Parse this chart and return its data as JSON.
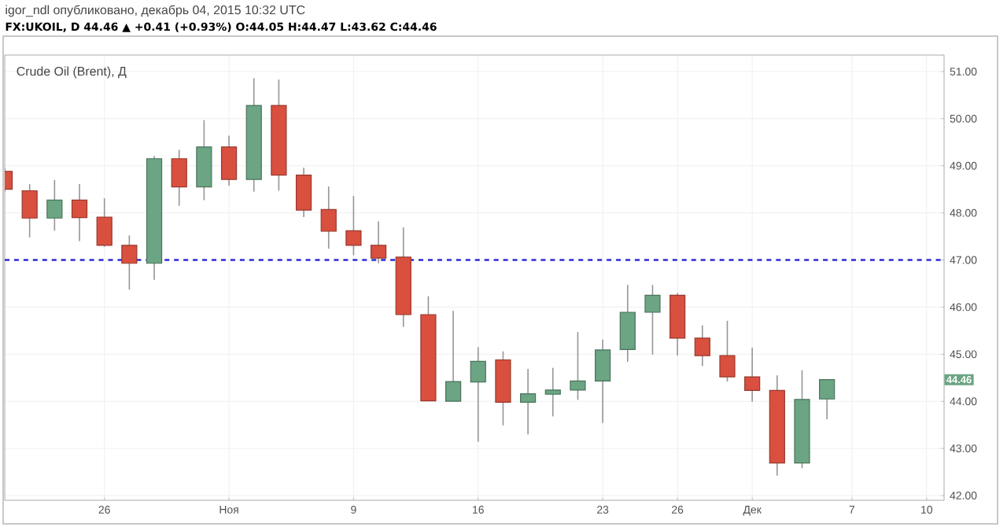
{
  "chart_data": {
    "type": "candlestick",
    "title": "Crude Oil (Brent), Д",
    "subtitle": "FX:UKOIL, D 44.46 ▲ +0.41 (+0.93%) O:44.05 H:44.47 L:43.62 C:44.46",
    "annotations": [
      "igor_ndl опубликовано, декабрь 04, 2015 10:32 UTC",
      {
        "text": "44.46",
        "y": 44.46
      }
    ],
    "categories": [
      null,
      null,
      null,
      null,
      "26",
      null,
      null,
      null,
      null,
      "Ноя",
      null,
      null,
      null,
      null,
      "9",
      null,
      null,
      null,
      null,
      "16",
      null,
      null,
      null,
      null,
      "23",
      null,
      null,
      "26",
      null,
      null,
      "Дек",
      null,
      null,
      null,
      "7",
      null,
      null,
      "10"
    ],
    "ohlc": [
      [
        48.88,
        48.95,
        48.45,
        48.5
      ],
      [
        48.47,
        48.61,
        47.48,
        47.89
      ],
      [
        47.89,
        48.7,
        47.62,
        48.27
      ],
      [
        48.27,
        48.61,
        47.4,
        47.9
      ],
      [
        47.91,
        48.31,
        47.28,
        47.31
      ],
      [
        47.31,
        47.52,
        46.37,
        46.93
      ],
      [
        46.93,
        49.21,
        46.58,
        49.15
      ],
      [
        49.15,
        49.34,
        48.15,
        48.55
      ],
      [
        48.55,
        49.97,
        48.27,
        49.4
      ],
      [
        49.4,
        49.64,
        48.58,
        48.71
      ],
      [
        48.71,
        50.86,
        48.45,
        50.28
      ],
      [
        50.28,
        50.83,
        48.47,
        48.8
      ],
      [
        48.8,
        48.96,
        47.91,
        48.06
      ],
      [
        48.07,
        48.56,
        47.24,
        47.61
      ],
      [
        47.62,
        48.36,
        47.1,
        47.31
      ],
      [
        47.31,
        47.82,
        46.93,
        47.04
      ],
      [
        47.06,
        47.69,
        45.58,
        45.84
      ],
      [
        45.84,
        46.23,
        44.0,
        44.01
      ],
      [
        44.0,
        45.92,
        44.0,
        44.42
      ],
      [
        44.41,
        45.15,
        43.14,
        44.85
      ],
      [
        44.88,
        45.06,
        43.49,
        43.98
      ],
      [
        43.98,
        44.69,
        43.3,
        44.16
      ],
      [
        44.15,
        44.71,
        43.68,
        44.24
      ],
      [
        44.24,
        45.47,
        44.03,
        44.43
      ],
      [
        44.43,
        45.31,
        43.54,
        45.09
      ],
      [
        45.1,
        46.47,
        44.84,
        45.89
      ],
      [
        45.89,
        46.47,
        44.99,
        46.25
      ],
      [
        46.25,
        46.3,
        44.97,
        45.34
      ],
      [
        45.34,
        45.61,
        44.75,
        44.97
      ],
      [
        44.97,
        45.71,
        44.42,
        44.52
      ],
      [
        44.52,
        45.14,
        43.99,
        44.23
      ],
      [
        44.23,
        44.55,
        42.42,
        42.69
      ],
      [
        42.69,
        44.66,
        42.58,
        44.04
      ],
      [
        44.05,
        44.47,
        43.62,
        44.46
      ],
      null,
      null,
      null,
      null
    ],
    "colors": [
      "#d9503f",
      "#d9503f",
      "#6ba583",
      "#d9503f",
      "#d9503f",
      "#d9503f",
      "#6ba583",
      "#d9503f",
      "#6ba583",
      "#d9503f",
      "#6ba583",
      "#d9503f",
      "#d9503f",
      "#d9503f",
      "#d9503f",
      "#d9503f",
      "#d9503f",
      "#d9503f",
      "#6ba583",
      "#6ba583",
      "#d9503f",
      "#6ba583",
      "#6ba583",
      "#6ba583",
      "#6ba583",
      "#6ba583",
      "#6ba583",
      "#d9503f",
      "#d9503f",
      "#d9503f",
      "#d9503f",
      "#d9503f",
      "#6ba583",
      "#6ba583",
      null,
      null,
      null,
      null
    ],
    "ylim": [
      41.9,
      51.35
    ],
    "yticks": [
      {
        "value": 42,
        "label": "42.00"
      },
      {
        "value": 43,
        "label": "43.00"
      },
      {
        "value": 44,
        "label": "44.00"
      },
      {
        "value": 45,
        "label": "45.00"
      },
      {
        "value": 46,
        "label": "46.00"
      },
      {
        "value": 47,
        "label": "47.00"
      },
      {
        "value": 48,
        "label": "48.00"
      },
      {
        "value": 49,
        "label": "49.00"
      },
      {
        "value": 50,
        "label": "50.00"
      },
      {
        "value": 51,
        "label": "51.00"
      }
    ],
    "grid": true,
    "ref_lines": [
      {
        "axis": "y",
        "value": 47.0,
        "color": "#2b2bd6",
        "line_style": "dashed"
      }
    ]
  }
}
